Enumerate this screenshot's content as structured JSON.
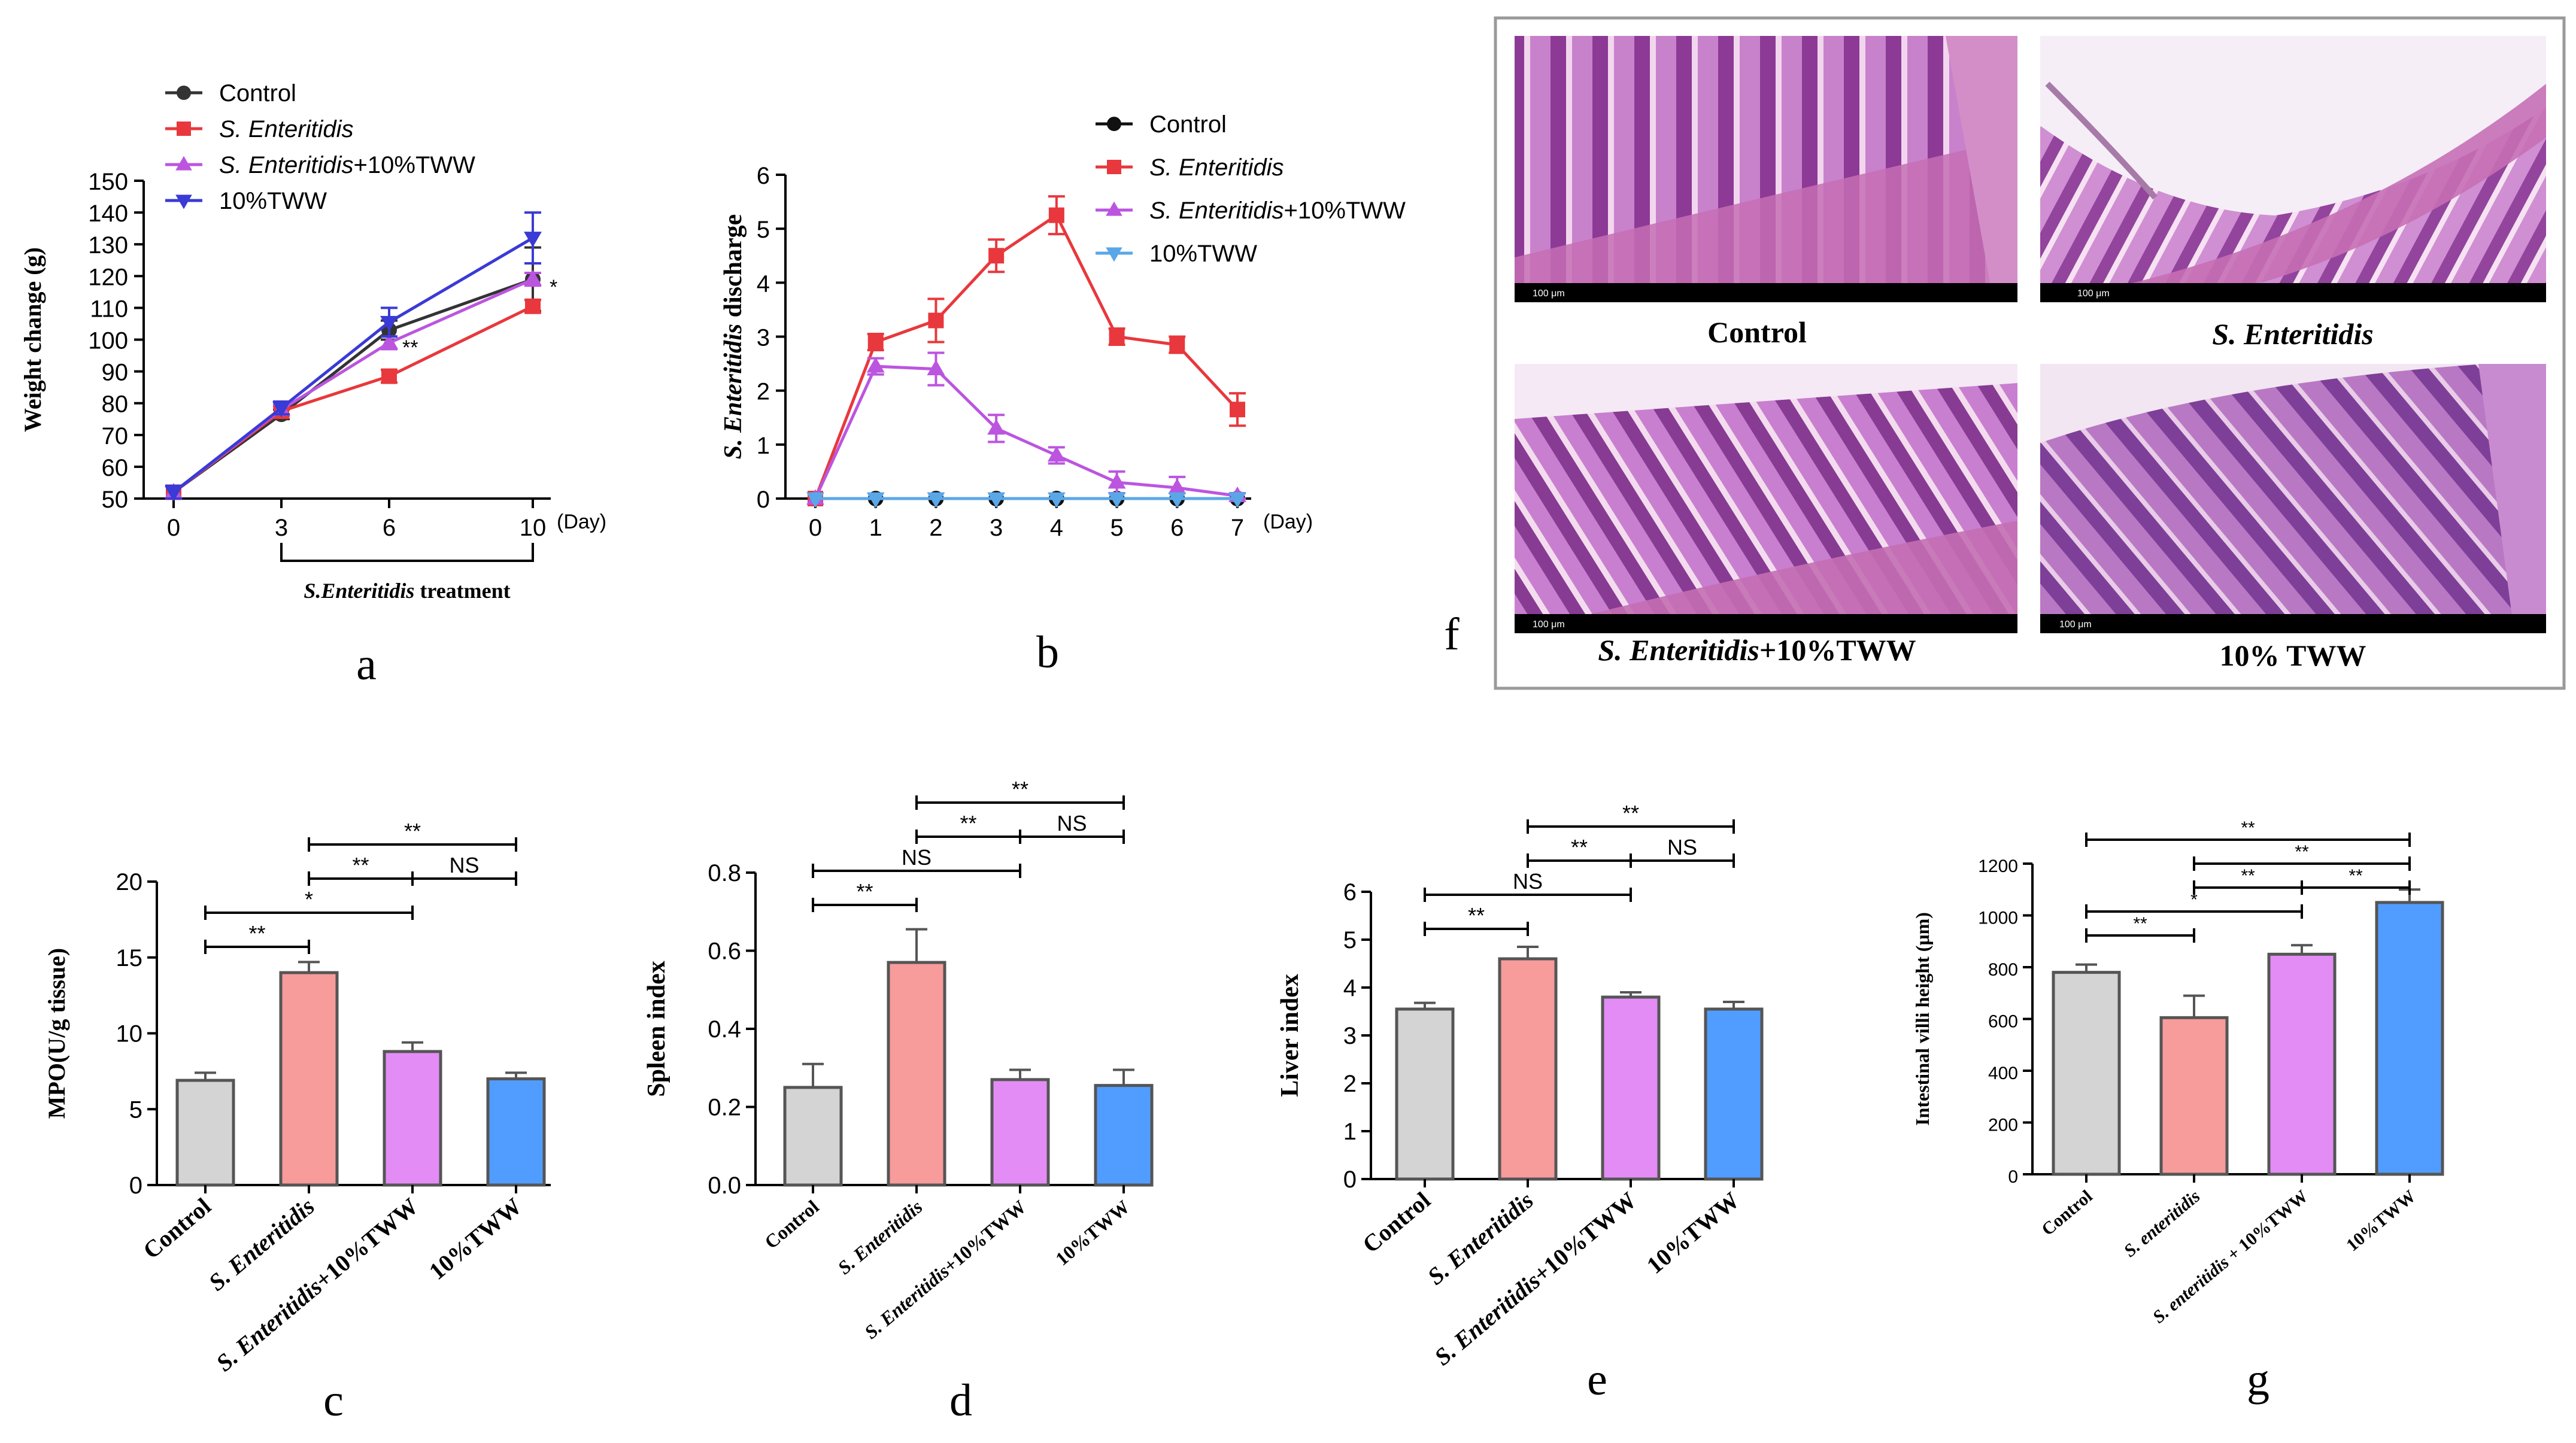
{
  "panel_letters": {
    "a": "a",
    "b": "b",
    "c": "c",
    "d": "d",
    "e": "e",
    "f": "f",
    "g": "g"
  },
  "colors": {
    "control": "#333333",
    "se": "#e8383d",
    "se_tww": "#bb55e0",
    "tww": "#3a3ad6",
    "tww_b": "#5aa7e8",
    "bar_control": "#d4d4d4",
    "bar_se": "#f79b9b",
    "bar_se_tww": "#e38cf5",
    "bar_tww": "#519dff",
    "he_stain": "#b063b5"
  },
  "histology": {
    "labels": {
      "control": "Control",
      "se": "S. Enteritidis",
      "se_tww_italic": "S. Enteritidis",
      "se_tww_rest": "+10%TWW",
      "tww": "10% TWW"
    },
    "scale_bar": "100 μm"
  },
  "chart_data": [
    {
      "id": "a",
      "type": "line",
      "title": "",
      "xlabel": "",
      "ylabel": "Weight change (g)",
      "unit": "(Day)",
      "x": [
        0,
        3,
        6,
        10
      ],
      "ylim": [
        50,
        150
      ],
      "yticks": [
        50,
        60,
        70,
        80,
        90,
        100,
        110,
        120,
        130,
        140,
        150
      ],
      "treatment_label": "S.Enteritidis treatment",
      "series": [
        {
          "name": "Control",
          "italic": "",
          "rest": "Control",
          "values": [
            52,
            76.5,
            103,
            119
          ],
          "errors": [
            2,
            1.5,
            3,
            10
          ],
          "marker": "circle",
          "color": "#333333"
        },
        {
          "name": "S. Enteritidis",
          "italic": "S. Enteritidis",
          "rest": "",
          "values": [
            52,
            77.5,
            88.5,
            110.5
          ],
          "errors": [
            2,
            1.5,
            2,
            2
          ],
          "marker": "square",
          "color": "#e8383d"
        },
        {
          "name": "S. Enteritidis+10%TWW",
          "italic": "S. Enteritidis",
          "rest": "+10%TWW",
          "values": [
            52,
            78,
            99,
            119
          ],
          "errors": [
            2,
            1.5,
            2,
            2
          ],
          "marker": "triangle-up",
          "color": "#bb55e0"
        },
        {
          "name": "10%TWW",
          "italic": "",
          "rest": "10%TWW",
          "values": [
            52,
            78.5,
            105.5,
            132
          ],
          "errors": [
            2,
            2,
            4.5,
            8
          ],
          "marker": "triangle-down",
          "color": "#3a3ad6"
        }
      ],
      "annotations": [
        {
          "text": "**",
          "x": 6,
          "y": 98
        },
        {
          "text": "*",
          "x": 10,
          "y": 117
        }
      ]
    },
    {
      "id": "b",
      "type": "line",
      "title": "",
      "xlabel": "",
      "ylabel_italic": "S. Enteritidis",
      "ylabel_rest": " discharge",
      "unit": "(Day)",
      "x": [
        0,
        1,
        2,
        3,
        4,
        5,
        6,
        7
      ],
      "ylim": [
        0,
        6
      ],
      "yticks": [
        0,
        1,
        2,
        3,
        4,
        5,
        6
      ],
      "series": [
        {
          "name": "Control",
          "italic": "",
          "rest": "Control",
          "values": [
            0,
            0,
            0,
            0,
            0,
            0,
            0,
            0
          ],
          "errors": [
            0,
            0,
            0,
            0,
            0,
            0,
            0,
            0
          ],
          "marker": "circle",
          "color": "#111111"
        },
        {
          "name": "S. Enteritidis",
          "italic": "S. Enteritidis",
          "rest": "",
          "values": [
            0,
            2.9,
            3.3,
            4.5,
            5.25,
            3.0,
            2.85,
            1.65
          ],
          "errors": [
            0,
            0.15,
            0.4,
            0.3,
            0.35,
            0.15,
            0.15,
            0.3
          ],
          "marker": "square",
          "color": "#e8383d"
        },
        {
          "name": "S. Enteritidis+10%TWW",
          "italic": "S. Enteritidis",
          "rest": "+10%TWW",
          "values": [
            0,
            2.45,
            2.4,
            1.3,
            0.8,
            0.3,
            0.2,
            0.05
          ],
          "errors": [
            0,
            0.15,
            0.3,
            0.25,
            0.15,
            0.2,
            0.2,
            0.05
          ],
          "marker": "triangle-up",
          "color": "#bb55e0"
        },
        {
          "name": "10%TWW",
          "italic": "",
          "rest": "10%TWW",
          "values": [
            0,
            0,
            0,
            0,
            0,
            0,
            0,
            0
          ],
          "errors": [
            0,
            0,
            0,
            0,
            0,
            0,
            0,
            0
          ],
          "marker": "triangle-down",
          "color": "#5aa7e8"
        }
      ]
    },
    {
      "id": "c",
      "type": "bar",
      "ylabel": "MPO(U/g tissue)",
      "ylim": [
        0,
        20
      ],
      "yticks": [
        0,
        5,
        10,
        15,
        20
      ],
      "categories": [
        "Control",
        "S. Enteritidis",
        "S. Enteritidis+10%TWW",
        "10%TWW"
      ],
      "cat_italic": [
        "",
        "S. Enteritidis",
        "S. Enteritidis",
        ""
      ],
      "cat_rest": [
        "Control",
        "",
        "+10%TWW",
        "10%TWW"
      ],
      "values": [
        6.9,
        14,
        8.8,
        7
      ],
      "errors": [
        0.5,
        0.7,
        0.6,
        0.4
      ],
      "sig": [
        {
          "a": 0,
          "b": 1,
          "text": "**",
          "level": 1
        },
        {
          "a": 0,
          "b": 2,
          "text": "*",
          "level": 2
        },
        {
          "a": 1,
          "b": 2,
          "text": "**",
          "level": 3
        },
        {
          "a": 2,
          "b": 3,
          "text": "NS",
          "level": 3
        },
        {
          "a": 1,
          "b": 3,
          "text": "**",
          "level": 4
        }
      ]
    },
    {
      "id": "d",
      "type": "bar",
      "ylabel": "Spleen index",
      "ylim": [
        0,
        0.8
      ],
      "yticks": [
        0.0,
        0.2,
        0.4,
        0.6,
        0.8
      ],
      "decimals": 1,
      "categories": [
        "Control",
        "S. Enteritidis",
        "S. Enteritidis+10%TWW",
        "10%TWW"
      ],
      "cat_italic": [
        "",
        "S. Enteritidis",
        "S. Enteritidis",
        ""
      ],
      "cat_rest": [
        "Control",
        "",
        "+10%TWW",
        "10%TWW"
      ],
      "values": [
        0.25,
        0.57,
        0.27,
        0.255
      ],
      "errors": [
        0.06,
        0.085,
        0.025,
        0.04
      ],
      "sig": [
        {
          "a": 0,
          "b": 1,
          "text": "**",
          "level": 1
        },
        {
          "a": 0,
          "b": 2,
          "text": "NS",
          "level": 2
        },
        {
          "a": 1,
          "b": 2,
          "text": "**",
          "level": 3
        },
        {
          "a": 2,
          "b": 3,
          "text": "NS",
          "level": 3
        },
        {
          "a": 1,
          "b": 3,
          "text": "**",
          "level": 4
        }
      ]
    },
    {
      "id": "e",
      "type": "bar",
      "ylabel": "Liver index",
      "ylim": [
        0,
        6
      ],
      "yticks": [
        0,
        1,
        2,
        3,
        4,
        5,
        6
      ],
      "categories": [
        "Control",
        "S. Enteritidis",
        "S. Enteritidis+10%TWW",
        "10%TWW"
      ],
      "cat_italic": [
        "",
        "S. Enteritidis",
        "S. Enteritidis",
        ""
      ],
      "cat_rest": [
        "Control",
        "",
        "+10%TWW",
        "10%TWW"
      ],
      "values": [
        3.55,
        4.6,
        3.8,
        3.55
      ],
      "errors": [
        0.13,
        0.25,
        0.1,
        0.15
      ],
      "sig": [
        {
          "a": 0,
          "b": 1,
          "text": "**",
          "level": 1
        },
        {
          "a": 0,
          "b": 2,
          "text": "NS",
          "level": 2
        },
        {
          "a": 1,
          "b": 2,
          "text": "**",
          "level": 3
        },
        {
          "a": 2,
          "b": 3,
          "text": "NS",
          "level": 3
        },
        {
          "a": 1,
          "b": 3,
          "text": "**",
          "level": 4
        }
      ]
    },
    {
      "id": "g",
      "type": "bar",
      "ylabel": "Intestinal villi height (μm)",
      "ylim": [
        0,
        1200
      ],
      "yticks": [
        0,
        200,
        400,
        600,
        800,
        1000,
        1200
      ],
      "categories": [
        "Control",
        "S. enteritidis",
        "S. enteritidis + 10%TWW",
        "10%TWW"
      ],
      "cat_italic": [
        "",
        "S. enteritidis",
        "S. enteritidis",
        ""
      ],
      "cat_rest": [
        "Control",
        "",
        " + 10%TWW",
        "10%TWW"
      ],
      "values": [
        780,
        605,
        850,
        1050
      ],
      "errors": [
        30,
        85,
        35,
        50
      ],
      "sig": [
        {
          "a": 0,
          "b": 1,
          "text": "**",
          "level": 1
        },
        {
          "a": 0,
          "b": 2,
          "text": "*",
          "level": 2
        },
        {
          "a": 1,
          "b": 2,
          "text": "**",
          "level": 3
        },
        {
          "a": 2,
          "b": 3,
          "text": "**",
          "level": 3
        },
        {
          "a": 1,
          "b": 3,
          "text": "**",
          "level": 4
        },
        {
          "a": 0,
          "b": 3,
          "text": "**",
          "level": 5
        }
      ]
    }
  ]
}
